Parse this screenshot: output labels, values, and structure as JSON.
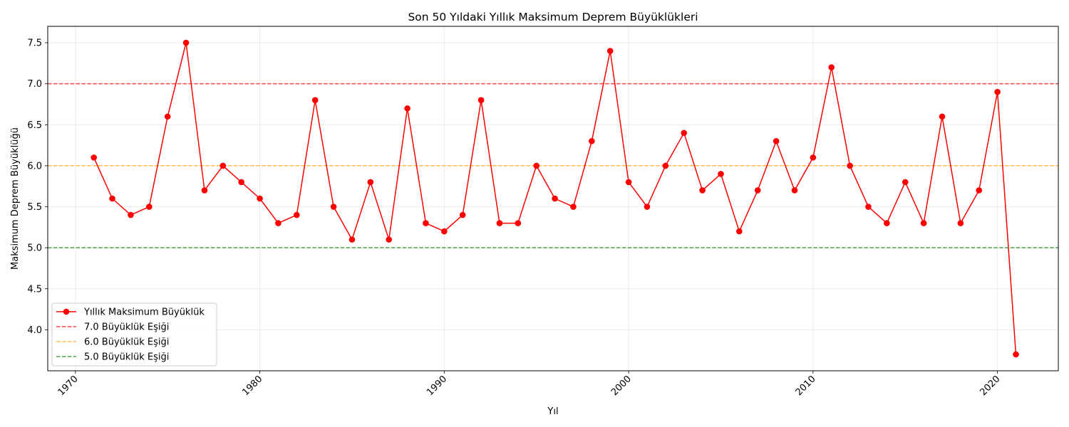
{
  "chart_data": {
    "type": "line",
    "title": "Son 50 Yıldaki Yıllık Maksimum Deprem Büyüklükleri",
    "xlabel": "Yıl",
    "ylabel": "Maksimum Deprem Büyüklüğü",
    "xlim": [
      1969.5,
      1973.25
    ],
    "ylim": [
      3.5,
      7.7
    ],
    "x_ticks": [
      1970,
      1980,
      1990,
      2000,
      2010,
      2020
    ],
    "y_ticks": [
      4.0,
      4.5,
      5.0,
      5.5,
      6.0,
      6.5,
      7.0,
      7.5
    ],
    "grid": true,
    "legend_position": "lower-left",
    "series": [
      {
        "name": "Yıllık Maksimum Büyüklük",
        "color": "#ff0000",
        "marker": "circle",
        "x": [
          1971,
          1972,
          1973,
          1974,
          1975,
          1976,
          1977,
          1978,
          1979,
          1980,
          1981,
          1982,
          1983,
          1984,
          1985,
          1986,
          1987,
          1988,
          1989,
          1990,
          1991,
          1992,
          1993,
          1994,
          1995,
          1996,
          1997,
          1998,
          1999,
          2000,
          2001,
          2002,
          2003,
          2004,
          2005,
          2006,
          2007,
          2008,
          2009,
          2010,
          2011,
          2012,
          2013,
          2014,
          2015,
          2016,
          2017,
          2018,
          2019,
          2020,
          2021
        ],
        "values": [
          6.1,
          5.6,
          5.4,
          5.5,
          6.6,
          7.5,
          5.7,
          6.0,
          5.8,
          5.6,
          5.3,
          5.4,
          6.8,
          5.5,
          5.1,
          5.8,
          5.1,
          6.7,
          5.3,
          5.2,
          5.4,
          6.8,
          5.3,
          5.3,
          6.0,
          5.6,
          5.5,
          6.3,
          7.4,
          5.8,
          5.5,
          6.0,
          6.4,
          5.7,
          5.9,
          5.2,
          5.7,
          6.3,
          5.7,
          6.1,
          7.2,
          6.0,
          5.5,
          5.3,
          5.8,
          5.3,
          6.6,
          5.3,
          5.7,
          6.9,
          3.7
        ]
      }
    ],
    "thresholds": [
      {
        "name": "7.0 Büyüklük Eşiği",
        "value": 7.0,
        "color": "#ff0000"
      },
      {
        "name": "6.0 Büyüklük Eşiği",
        "value": 6.0,
        "color": "#ffa500"
      },
      {
        "name": "5.0 Büyüklük Eşiği",
        "value": 5.0,
        "color": "#008000"
      }
    ]
  }
}
